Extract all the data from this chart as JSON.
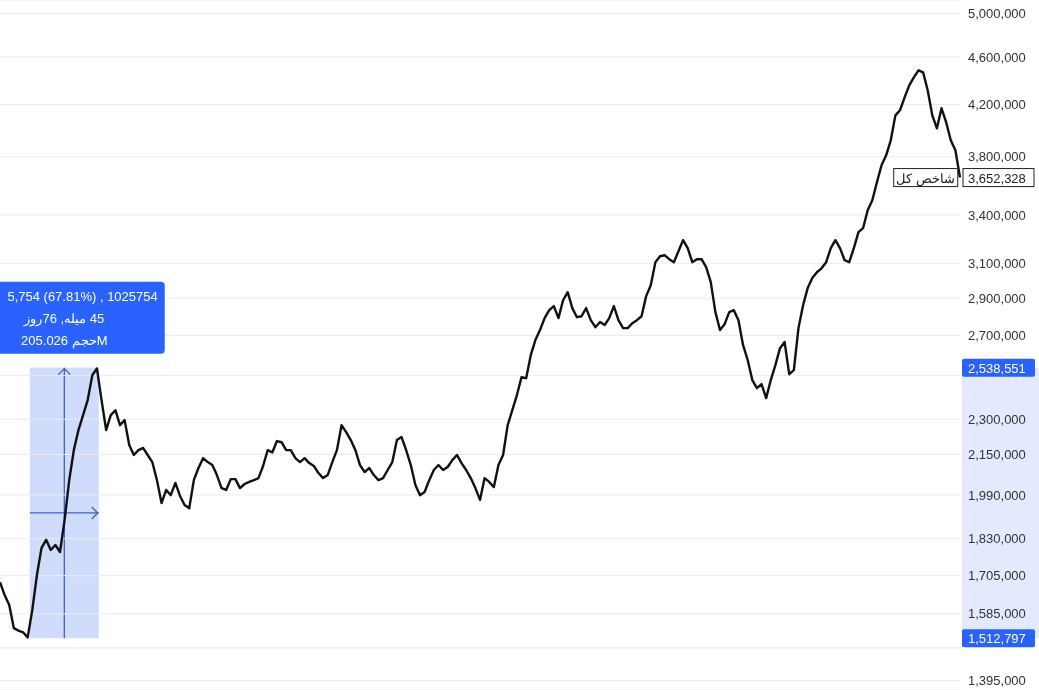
{
  "chart_data": {
    "type": "line",
    "tick_labels": "y",
    "log": "y",
    "grid": "y",
    "categories": [
      null,
      null,
      null,
      null,
      null,
      null,
      null,
      null,
      null,
      null,
      null,
      null,
      null,
      null,
      null,
      null,
      null,
      null,
      null,
      null,
      null,
      null,
      null,
      null,
      null,
      null,
      null,
      null,
      null,
      null,
      null,
      null,
      null,
      null,
      null,
      null,
      null,
      null,
      null,
      null,
      null,
      null,
      null,
      null,
      null,
      null,
      null,
      null,
      null,
      null,
      null,
      null,
      null,
      null,
      null,
      null,
      null,
      null,
      null,
      null,
      null,
      null,
      null,
      null,
      null,
      null,
      null,
      null,
      null,
      null,
      null,
      null,
      null,
      null,
      null,
      null,
      null,
      null,
      null,
      null,
      null,
      null,
      null,
      null,
      null,
      null,
      null,
      null,
      null,
      null,
      null,
      null,
      null,
      null,
      null,
      null,
      null,
      null,
      null,
      null,
      null,
      null,
      null,
      null,
      null,
      null,
      null,
      null,
      null,
      null,
      null,
      null,
      null,
      null,
      null,
      null,
      null,
      null,
      null,
      null,
      null,
      null,
      null,
      null,
      null,
      null,
      null,
      null,
      null,
      null,
      null,
      null,
      null,
      null,
      null,
      null,
      null,
      null,
      null,
      null,
      null,
      null,
      null,
      null,
      null,
      null,
      null,
      null,
      null,
      null,
      null,
      null,
      null,
      null,
      null,
      null,
      null,
      null,
      null,
      null,
      null,
      null,
      null,
      null,
      null,
      null,
      null,
      null,
      null,
      null,
      null,
      null,
      null,
      null,
      null,
      null,
      null,
      null,
      null,
      null,
      null,
      null,
      null,
      null,
      null,
      null,
      null,
      null,
      null,
      null,
      null,
      null,
      null,
      null,
      null,
      null,
      null,
      null,
      null,
      null,
      null,
      null,
      null,
      null,
      null,
      null,
      null,
      null,
      null
    ],
    "ylim": [
      1370000,
      5130000
    ],
    "yticks": [
      {
        "value": 1395000,
        "label": "1,395,000"
      },
      {
        "value": 1485000,
        "label": null
      },
      {
        "value": 1585000,
        "label": "1,585,000"
      },
      {
        "value": 1705000,
        "label": "1,705,000"
      },
      {
        "value": 1830000,
        "label": "1,830,000"
      },
      {
        "value": 1990000,
        "label": "1,990,000"
      },
      {
        "value": 2150000,
        "label": "2,150,000"
      },
      {
        "value": 2300000,
        "label": "2,300,000"
      },
      {
        "value": 2500000,
        "label": null
      },
      {
        "value": 2700000,
        "label": "2,700,000"
      },
      {
        "value": 2900000,
        "label": "2,900,000"
      },
      {
        "value": 3100000,
        "label": "3,100,000"
      },
      {
        "value": 3400000,
        "label": "3,400,000"
      },
      {
        "value": 3800000,
        "label": "3,800,000"
      },
      {
        "value": 4200000,
        "label": "4,200,000"
      },
      {
        "value": 4600000,
        "label": "4,600,000"
      },
      {
        "value": 5000000,
        "label": "5,000,000"
      }
    ],
    "bands": [
      {
        "axis": "y",
        "from": 1512797,
        "to": 2538551,
        "color": "#d0dcfb"
      }
    ],
    "annotations": [
      "5,754 (67.81%) , 1025754",
      "45 میله, 76روز",
      "205.026 حجمM",
      "2,538,551",
      "1,512,797",
      "3,652,328"
    ],
    "series": [
      {
        "name": "شاخص کل",
        "color": "#111111",
        "values": [
          1684000,
          1643000,
          1612000,
          1542000,
          1535000,
          1530000,
          1515000,
          1597000,
          1707000,
          1798000,
          1826000,
          1791000,
          1808000,
          1784000,
          1897000,
          2047000,
          2168000,
          2253000,
          2318000,
          2386000,
          2502000,
          2535000,
          2386000,
          2253000,
          2318000,
          2340000,
          2274000,
          2296000,
          2189000,
          2148000,
          2168000,
          2177000,
          2148000,
          2119000,
          2047000,
          1959000,
          2009000,
          1989000,
          2036000,
          1986000,
          1952000,
          1940000,
          2047000,
          2095000,
          2135000,
          2119000,
          2107000,
          2067000,
          2016000,
          2009000,
          2051000,
          2051000,
          2016000,
          2032000,
          2040000,
          2047000,
          2055000,
          2103000,
          2168000,
          2158000,
          2206000,
          2201000,
          2168000,
          2168000,
          2135000,
          2119000,
          2135000,
          2115000,
          2103000,
          2075000,
          2055000,
          2067000,
          2119000,
          2168000,
          2274000,
          2244000,
          2210000,
          2168000,
          2107000,
          2079000,
          2095000,
          2067000,
          2047000,
          2055000,
          2087000,
          2119000,
          2210000,
          2223000,
          2168000,
          2107000,
          2028000,
          1989000,
          2001000,
          2047000,
          2087000,
          2107000,
          2087000,
          2099000,
          2127000,
          2148000,
          2115000,
          2087000,
          2055000,
          2016000,
          1971000,
          2055000,
          2040000,
          2020000,
          2107000,
          2148000,
          2274000,
          2340000,
          2409000,
          2493000,
          2488000,
          2600000,
          2676000,
          2728000,
          2791000,
          2834000,
          2856000,
          2791000,
          2888000,
          2933000,
          2845000,
          2796000,
          2801000,
          2845000,
          2780000,
          2743000,
          2770000,
          2754000,
          2791000,
          2856000,
          2780000,
          2738000,
          2738000,
          2764000,
          2780000,
          2801000,
          2911000,
          2972000,
          3106000,
          3142000,
          3148000,
          3124000,
          3106000,
          3172000,
          3240000,
          3191000,
          3106000,
          3124000,
          3124000,
          3077000,
          2990000,
          2823000,
          2728000,
          2759000,
          2823000,
          2834000,
          2780000,
          2650000,
          2576000,
          2479000,
          2441000,
          2460000,
          2395000,
          2479000,
          2551000,
          2635000,
          2666000,
          2507000,
          2527000,
          2738000,
          2861000,
          2956000,
          3013000,
          3047000,
          3070000,
          3106000,
          3191000,
          3240000,
          3191000,
          3118000,
          3106000,
          3191000,
          3290000,
          3315000,
          3431000,
          3497000,
          3620000,
          3739000,
          3811000,
          3922000,
          4114000,
          4154000,
          4258000,
          4357000,
          4424000,
          4484000,
          4467000,
          4316000,
          4114000,
          4013000,
          4170000,
          4060000,
          3922000,
          3848000,
          3652328
        ]
      }
    ]
  }
}
